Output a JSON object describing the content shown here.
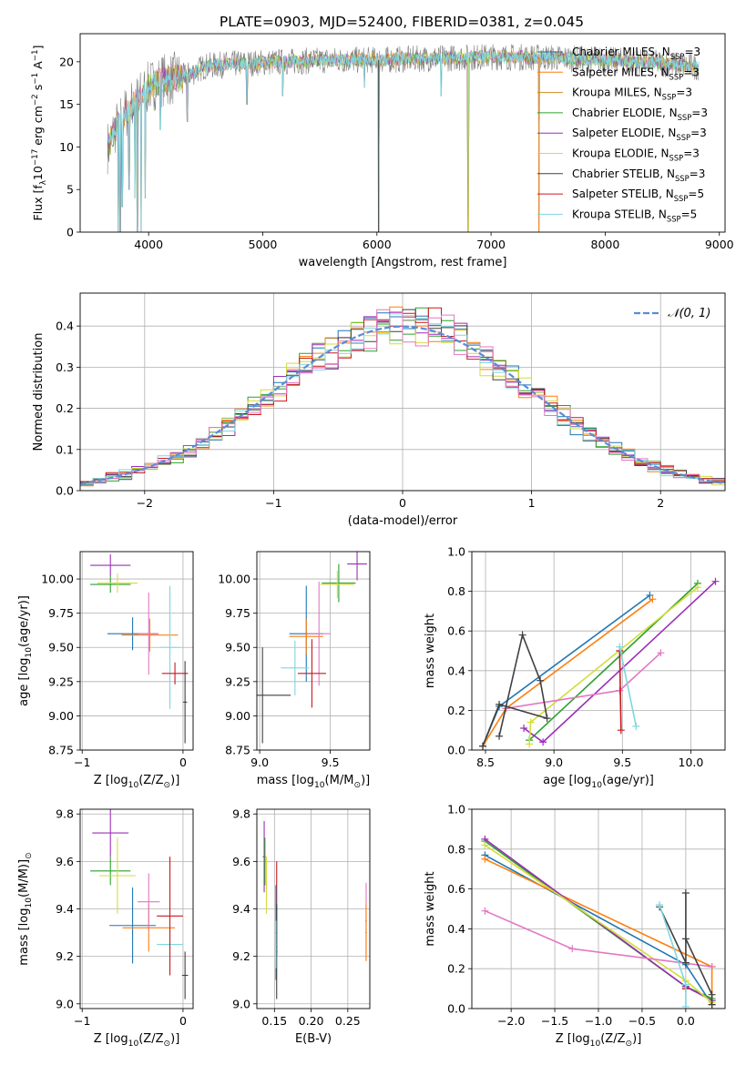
{
  "title": "PLATE=0903, MJD=52400, FIBERID=0381, z=0.045",
  "legend_models": [
    {
      "label": "Chabrier MILES, N",
      "color": "#1f77b4"
    },
    {
      "label": "Salpeter MILES, N",
      "color": "#ff7f0e"
    },
    {
      "label": "Kroupa MILES, N",
      "color": "#d18b1a"
    },
    {
      "label": "Chabrier ELODIE, N",
      "color": "#2ca02c"
    },
    {
      "label": "Salpeter ELODIE, N",
      "color": "#9b2fb5"
    },
    {
      "label": "Kroupa ELODIE, N",
      "color": "#d4dc3c"
    },
    {
      "label": "Chabrier STELIB, N",
      "color": "#404040"
    },
    {
      "label": "Salpeter STELIB, N",
      "color": "#c8191e"
    },
    {
      "label": "Kroupa STELIB, N",
      "color": "#7fd6e0"
    }
  ],
  "legend_suffix": [
    "=3",
    "=3",
    "=3",
    "=3",
    "=3",
    "=3",
    "=3",
    "=5",
    "=5"
  ],
  "legend_sub": "SSP",
  "chart_data": [
    {
      "id": "spectrum",
      "type": "line",
      "xlabel": "wavelength [Angstrom, rest frame]",
      "ylabel": "Flux [f",
      "ylabel_sub": "λ",
      "ylabel_tail": "10",
      "ylabel_exp1": "−17",
      "ylabel_mid": " erg cm",
      "ylabel_exp2": "−2",
      "ylabel_mid2": " s",
      "ylabel_exp3": "−1",
      "ylabel_end": " A",
      "ylabel_exp4": "−1",
      "ylabel_close": "]",
      "xlim": [
        3400,
        9050
      ],
      "ylim": [
        0,
        23.3
      ],
      "xticks": [
        "4000",
        "5000",
        "6000",
        "7000",
        "8000",
        "9000"
      ],
      "yticks": [
        "0",
        "5",
        "10",
        "15",
        "20"
      ],
      "grid": false,
      "legend_position": "top-right",
      "data_color": "#808080",
      "model_color": "#7fd6e0",
      "continuum": [
        [
          3650,
          10
        ],
        [
          3700,
          12
        ],
        [
          3800,
          14
        ],
        [
          3900,
          15.5
        ],
        [
          4000,
          17
        ],
        [
          4100,
          17.8
        ],
        [
          4300,
          18.2
        ],
        [
          4500,
          19.5
        ],
        [
          4800,
          19.8
        ],
        [
          5200,
          20
        ],
        [
          5600,
          20.2
        ],
        [
          6000,
          20.2
        ],
        [
          6500,
          20.4
        ],
        [
          7000,
          20.6
        ],
        [
          7500,
          20.5
        ],
        [
          8000,
          20.2
        ],
        [
          8500,
          19.8
        ],
        [
          8800,
          19.4
        ]
      ],
      "range": [
        3640,
        8820
      ],
      "dips": [
        [
          3735,
          0
        ],
        [
          3750,
          0
        ],
        [
          3770,
          3
        ],
        [
          3830,
          5
        ],
        [
          3880,
          4
        ],
        [
          3900,
          0
        ],
        [
          3935,
          0
        ],
        [
          3970,
          4
        ],
        [
          4102,
          12
        ],
        [
          4340,
          13
        ],
        [
          4861,
          15
        ],
        [
          5175,
          16
        ],
        [
          5890,
          17
        ],
        [
          6015,
          0
        ],
        [
          6563,
          16
        ],
        [
          6800,
          0
        ],
        [
          7420,
          0
        ]
      ]
    },
    {
      "id": "residuals",
      "type": "histogram",
      "xlabel": "(data-model)/error",
      "ylabel": "Normed distribution",
      "xlim": [
        -2.5,
        2.5
      ],
      "ylim": [
        0,
        0.48
      ],
      "xticks": [
        "−2",
        "−1",
        "0",
        "1",
        "2"
      ],
      "yticks": [
        "0.0",
        "0.1",
        "0.2",
        "0.3",
        "0.4"
      ],
      "grid": true,
      "legend_position": "top-right",
      "reference_label": "𝒩(0, 1)",
      "reference_color": "#5b8bd6",
      "bin_width": 0.1
    },
    {
      "id": "age-vs-Z",
      "type": "scatter",
      "xlabel": "Z [log",
      "xlabel_sub": "10",
      "xlabel_tail": "(Z/Z",
      "xlabel_sym": "⊙",
      "xlabel_end": ")]",
      "ylabel": "age  [log",
      "ylabel_sub": "10",
      "ylabel_tail": "(age/yr)]",
      "xlim": [
        -1.02,
        0.1
      ],
      "ylim": [
        8.75,
        10.2
      ],
      "xticks": [
        "−1",
        "0"
      ],
      "yticks": [
        "8.75",
        "9.00",
        "9.25",
        "9.50",
        "9.75",
        "10.00"
      ],
      "grid": true,
      "points": [
        {
          "x": -0.72,
          "y": 9.96,
          "xerr": 0.2,
          "yerr": 0.06,
          "color": "#2ca02c"
        },
        {
          "x": -0.65,
          "y": 9.97,
          "xerr": 0.2,
          "yerr": 0.07,
          "color": "#d4dc3c"
        },
        {
          "x": -0.72,
          "y": 10.1,
          "xerr": 0.2,
          "yerr": 0.08,
          "color": "#9b2fb5"
        },
        {
          "x": -0.5,
          "y": 9.6,
          "xerr": 0.25,
          "yerr": 0.12,
          "color": "#1f77b4"
        },
        {
          "x": -0.33,
          "y": 9.59,
          "xerr": 0.28,
          "yerr": 0.12,
          "color": "#ff7f0e"
        },
        {
          "x": -0.34,
          "y": 9.6,
          "xerr": 0.1,
          "yerr": 0.3,
          "color": "#e377c2"
        },
        {
          "x": -0.13,
          "y": 9.5,
          "xerr": 0.1,
          "yerr": 0.45,
          "color": "#7fd6e0"
        },
        {
          "x": -0.08,
          "y": 9.31,
          "xerr": 0.13,
          "yerr": 0.08,
          "color": "#c8191e"
        },
        {
          "x": 0.02,
          "y": 9.1,
          "xerr": 0.02,
          "yerr": 0.3,
          "color": "#404040"
        }
      ]
    },
    {
      "id": "age-vs-mass",
      "type": "scatter",
      "xlabel": "mass [log",
      "xlabel_sub": "10",
      "xlabel_tail": "(M/M",
      "xlabel_sym": "⊙",
      "xlabel_end": ")]",
      "xlim": [
        8.98,
        9.78
      ],
      "ylim": [
        8.75,
        10.2
      ],
      "xticks": [
        "9.0",
        "9.5"
      ],
      "yticks": [
        "8.75",
        "9.00",
        "9.25",
        "9.50",
        "9.75",
        "10.00"
      ],
      "grid": true,
      "points": [
        {
          "x": 9.56,
          "y": 9.97,
          "xerr": 0.12,
          "yerr": 0.14,
          "color": "#2ca02c"
        },
        {
          "x": 9.55,
          "y": 9.96,
          "xerr": 0.12,
          "yerr": 0.1,
          "color": "#d4dc3c"
        },
        {
          "x": 9.69,
          "y": 10.11,
          "xerr": 0.07,
          "yerr": 0.12,
          "color": "#9b2fb5"
        },
        {
          "x": 9.33,
          "y": 9.6,
          "xerr": 0.12,
          "yerr": 0.35,
          "color": "#1f77b4"
        },
        {
          "x": 9.33,
          "y": 9.58,
          "xerr": 0.12,
          "yerr": 0.13,
          "color": "#ff7f0e"
        },
        {
          "x": 9.42,
          "y": 9.6,
          "xerr": 0.08,
          "yerr": 0.38,
          "color": "#e377c2"
        },
        {
          "x": 9.25,
          "y": 9.35,
          "xerr": 0.1,
          "yerr": 0.2,
          "color": "#7fd6e0"
        },
        {
          "x": 9.37,
          "y": 9.31,
          "xerr": 0.1,
          "yerr": 0.25,
          "color": "#c8191e"
        },
        {
          "x": 9.02,
          "y": 9.15,
          "xerr": 0.2,
          "yerr": 0.35,
          "color": "#404040"
        }
      ]
    },
    {
      "id": "weight-vs-age",
      "type": "line",
      "xlabel": "age  [log",
      "xlabel_sub": "10",
      "xlabel_tail": "(age/yr)]",
      "ylabel": "mass weight",
      "xlim": [
        8.4,
        10.25
      ],
      "ylim": [
        0,
        1
      ],
      "xticks": [
        "8.5",
        "9.0",
        "9.5",
        "10.0"
      ],
      "yticks": [
        "0.0",
        "0.2",
        "0.4",
        "0.6",
        "0.8",
        "1.0"
      ],
      "grid": true,
      "series": [
        {
          "color": "#1f77b4",
          "points": [
            [
              8.48,
              0.02
            ],
            [
              8.6,
              0.22
            ],
            [
              9.7,
              0.78
            ]
          ]
        },
        {
          "color": "#ff7f0e",
          "points": [
            [
              8.48,
              0.02
            ],
            [
              8.65,
              0.21
            ],
            [
              9.72,
              0.76
            ]
          ]
        },
        {
          "color": "#2ca02c",
          "points": [
            [
              8.82,
              0.05
            ],
            [
              10.05,
              0.84
            ]
          ]
        },
        {
          "color": "#9b2fb5",
          "points": [
            [
              8.78,
              0.11
            ],
            [
              8.92,
              0.04
            ],
            [
              10.18,
              0.85
            ]
          ]
        },
        {
          "color": "#d4dc3c",
          "points": [
            [
              8.82,
              0.03
            ],
            [
              8.83,
              0.14
            ],
            [
              10.05,
              0.82
            ]
          ]
        },
        {
          "color": "#e377c2",
          "points": [
            [
              8.65,
              0.21
            ],
            [
              9.48,
              0.3
            ],
            [
              9.78,
              0.49
            ]
          ]
        },
        {
          "color": "#404040",
          "points": [
            [
              8.6,
              0.07
            ],
            [
              8.77,
              0.58
            ],
            [
              8.9,
              0.35
            ],
            [
              8.95,
              0.16
            ],
            [
              8.6,
              0.23
            ],
            [
              8.48,
              0.02
            ]
          ]
        },
        {
          "color": "#c8191e",
          "points": [
            [
              9.48,
              0.5
            ],
            [
              9.49,
              0.1
            ]
          ]
        },
        {
          "color": "#7fd6e0",
          "points": [
            [
              9.48,
              0.52
            ],
            [
              9.6,
              0.12
            ]
          ]
        }
      ]
    },
    {
      "id": "mass-vs-Z",
      "type": "scatter",
      "xlabel": "Z [log",
      "xlabel_sub": "10",
      "xlabel_tail": "(Z/Z",
      "xlabel_sym": "⊙",
      "xlabel_end": ")]",
      "ylabel": "mass [log",
      "ylabel_sub": "10",
      "ylabel_tail": "(M/M",
      "ylabel_sym": "⊙",
      "ylabel_end": ")]",
      "xlim": [
        -1.02,
        0.1
      ],
      "ylim": [
        8.98,
        9.82
      ],
      "xticks": [
        "−1",
        "0"
      ],
      "yticks": [
        "9.0",
        "9.2",
        "9.4",
        "9.6",
        "9.8"
      ],
      "grid": true,
      "points": [
        {
          "x": -0.72,
          "y": 9.56,
          "xerr": 0.2,
          "yerr": 0.06,
          "color": "#2ca02c"
        },
        {
          "x": -0.65,
          "y": 9.54,
          "xerr": 0.18,
          "yerr": 0.16,
          "color": "#d4dc3c"
        },
        {
          "x": -0.72,
          "y": 9.72,
          "xerr": 0.18,
          "yerr": 0.1,
          "color": "#9b2fb5"
        },
        {
          "x": -0.5,
          "y": 9.33,
          "xerr": 0.23,
          "yerr": 0.16,
          "color": "#1f77b4"
        },
        {
          "x": -0.34,
          "y": 9.32,
          "xerr": 0.26,
          "yerr": 0.1,
          "color": "#ff7f0e"
        },
        {
          "x": -0.34,
          "y": 9.43,
          "xerr": 0.11,
          "yerr": 0.12,
          "color": "#e377c2"
        },
        {
          "x": -0.13,
          "y": 9.25,
          "xerr": 0.13,
          "yerr": 0.08,
          "color": "#7fd6e0"
        },
        {
          "x": -0.13,
          "y": 9.37,
          "xerr": 0.13,
          "yerr": 0.25,
          "color": "#c8191e"
        },
        {
          "x": 0.02,
          "y": 9.12,
          "xerr": 0.03,
          "yerr": 0.1,
          "color": "#404040"
        }
      ]
    },
    {
      "id": "mass-vs-ebv",
      "type": "scatter",
      "xlabel": "E(B-V)",
      "xlim": [
        0.126,
        0.28
      ],
      "ylim": [
        8.98,
        9.82
      ],
      "xticks": [
        "0.15",
        "0.20",
        "0.25"
      ],
      "yticks": [
        "9.0",
        "9.2",
        "9.4",
        "9.6",
        "9.8"
      ],
      "grid": true,
      "points": [
        {
          "x": 0.136,
          "y": 9.62,
          "xerr": 0.002,
          "yerr": 0.15,
          "color": "#9b2fb5"
        },
        {
          "x": 0.139,
          "y": 9.5,
          "xerr": 0.001,
          "yerr": 0.12,
          "color": "#d4dc3c"
        },
        {
          "x": 0.137,
          "y": 9.6,
          "xerr": 0.001,
          "yerr": 0.1,
          "color": "#2ca02c"
        },
        {
          "x": 0.153,
          "y": 9.4,
          "xerr": 0.001,
          "yerr": 0.2,
          "color": "#c8191e"
        },
        {
          "x": 0.152,
          "y": 9.3,
          "xerr": 0.001,
          "yerr": 0.2,
          "color": "#1f77b4"
        },
        {
          "x": 0.153,
          "y": 9.22,
          "xerr": 0.001,
          "yerr": 0.2,
          "color": "#404040"
        },
        {
          "x": 0.152,
          "y": 9.25,
          "xerr": 0.001,
          "yerr": 0.1,
          "color": "#7fd6e0"
        },
        {
          "x": 0.275,
          "y": 9.35,
          "xerr": 0.001,
          "yerr": 0.16,
          "color": "#e377c2"
        },
        {
          "x": 0.275,
          "y": 9.3,
          "xerr": 0.001,
          "yerr": 0.12,
          "color": "#ff7f0e"
        }
      ]
    },
    {
      "id": "weight-vs-Z",
      "type": "line",
      "xlabel": "Z [log",
      "xlabel_sub": "10",
      "xlabel_tail": "(Z/Z",
      "xlabel_sym": "⊙",
      "xlabel_end": ")]",
      "ylabel": "mass weight",
      "xlim": [
        -2.45,
        0.45
      ],
      "ylim": [
        0,
        1
      ],
      "xticks": [
        "−2.0",
        "−1.5",
        "−1.0",
        "−0.5",
        "0.0"
      ],
      "yticks": [
        "0.0",
        "0.2",
        "0.4",
        "0.6",
        "0.8",
        "1.0"
      ],
      "grid": true,
      "series": [
        {
          "color": "#1f77b4",
          "points": [
            [
              -2.3,
              0.77
            ],
            [
              0.0,
              0.22
            ],
            [
              0.3,
              0.02
            ]
          ]
        },
        {
          "color": "#ff7f0e",
          "points": [
            [
              -2.3,
              0.75
            ],
            [
              0.3,
              0.21
            ],
            [
              0.3,
              0.02
            ]
          ]
        },
        {
          "color": "#2ca02c",
          "points": [
            [
              -2.3,
              0.84
            ],
            [
              0.0,
              0.11
            ],
            [
              0.3,
              0.05
            ]
          ]
        },
        {
          "color": "#9b2fb5",
          "points": [
            [
              -2.3,
              0.85
            ],
            [
              0.0,
              0.11
            ],
            [
              0.3,
              0.04
            ]
          ]
        },
        {
          "color": "#d4dc3c",
          "points": [
            [
              -2.3,
              0.82
            ],
            [
              0.0,
              0.14
            ],
            [
              0.3,
              0.03
            ]
          ]
        },
        {
          "color": "#e377c2",
          "points": [
            [
              -2.3,
              0.49
            ],
            [
              -1.3,
              0.3
            ],
            [
              0.3,
              0.21
            ]
          ]
        },
        {
          "color": "#404040",
          "points": [
            [
              -0.3,
              0.51
            ],
            [
              0.0,
              0.23
            ],
            [
              0.0,
              0.58
            ],
            [
              0.0,
              0.35
            ],
            [
              0.3,
              0.07
            ],
            [
              0.3,
              0.02
            ]
          ]
        },
        {
          "color": "#c8191e",
          "points": [
            [
              0.0,
              0.1
            ],
            [
              0.0,
              0.1
            ]
          ]
        },
        {
          "color": "#7fd6e0",
          "points": [
            [
              -0.3,
              0.52
            ],
            [
              0.0,
              0.12
            ],
            [
              0.0,
              0.01
            ]
          ]
        }
      ]
    }
  ]
}
